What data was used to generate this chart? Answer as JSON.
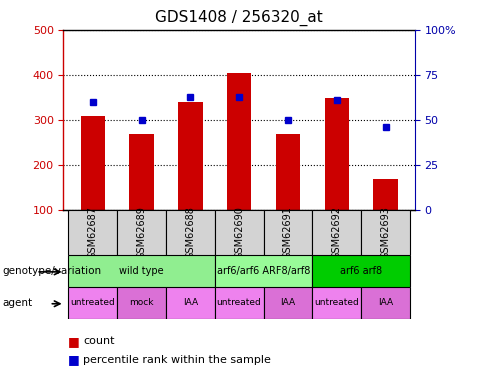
{
  "title": "GDS1408 / 256320_at",
  "samples": [
    "GSM62687",
    "GSM62689",
    "GSM62688",
    "GSM62690",
    "GSM62691",
    "GSM62692",
    "GSM62693"
  ],
  "counts": [
    308,
    270,
    340,
    405,
    270,
    350,
    170
  ],
  "percentiles": [
    60,
    50,
    63,
    63,
    50,
    61,
    46
  ],
  "baseline": 100,
  "ylim_left": [
    100,
    500
  ],
  "ylim_right": [
    0,
    100
  ],
  "yticks_left": [
    100,
    200,
    300,
    400,
    500
  ],
  "yticks_right": [
    0,
    25,
    50,
    75,
    100
  ],
  "ytick_labels_right": [
    "0",
    "25",
    "50",
    "75",
    "100%"
  ],
  "bar_color": "#cc0000",
  "dot_color": "#0000cc",
  "genotype_labels": [
    {
      "text": "wild type",
      "start": 0,
      "end": 2,
      "color": "#90ee90"
    },
    {
      "text": "arf6/arf6 ARF8/arf8",
      "start": 3,
      "end": 4,
      "color": "#98fb98"
    },
    {
      "text": "arf6 arf8",
      "start": 5,
      "end": 6,
      "color": "#00cc00"
    }
  ],
  "agent_labels": [
    {
      "text": "untreated",
      "index": 0,
      "color": "#ee82ee"
    },
    {
      "text": "mock",
      "index": 1,
      "color": "#da70d6"
    },
    {
      "text": "IAA",
      "index": 2,
      "color": "#ee82ee"
    },
    {
      "text": "untreated",
      "index": 3,
      "color": "#ee82ee"
    },
    {
      "text": "IAA",
      "index": 4,
      "color": "#da70d6"
    },
    {
      "text": "untreated",
      "index": 5,
      "color": "#ee82ee"
    },
    {
      "text": "IAA",
      "index": 6,
      "color": "#da70d6"
    }
  ],
  "legend_count_color": "#cc0000",
  "legend_dot_color": "#0000cc",
  "left_axis_color": "#cc0000",
  "right_axis_color": "#0000aa",
  "bg_color": "#ffffff",
  "plot_bg_color": "#ffffff",
  "grid_color": "#000000",
  "tick_label_area_color": "#d3d3d3"
}
